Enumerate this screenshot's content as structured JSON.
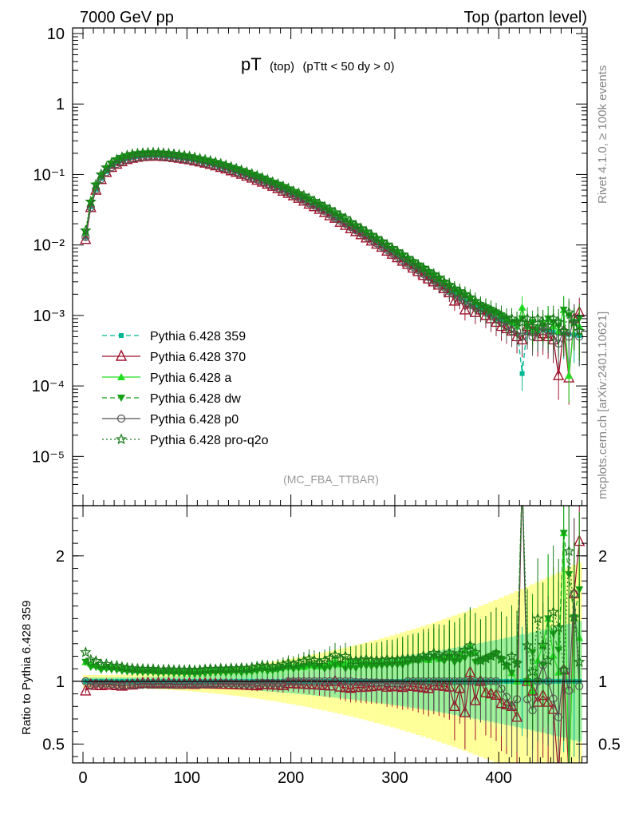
{
  "header": {
    "left": "7000 GeV pp",
    "right": "Top (parton level)"
  },
  "side_labels": {
    "rivet": "Rivet 4.1.0, ≥ 100k events",
    "mcplots": "mcplots.cern.ch [arXiv:2401.10621]"
  },
  "plot": {
    "title_main": "pT",
    "title_sub1": "(top)",
    "title_sub2": "(pTtt < 50 dy > 0)",
    "analysis_tag": "(MC_FBA_TTBAR)",
    "ratio_ylabel": "Ratio to Pythia 6.428 359"
  },
  "chart_data": {
    "type": "line",
    "x": [
      2.5,
      7.5,
      12.5,
      17.5,
      22.5,
      27.5,
      32.5,
      37.5,
      42.5,
      47.5,
      52.5,
      57.5,
      62.5,
      67.5,
      72.5,
      77.5,
      82.5,
      87.5,
      92.5,
      97.5,
      102.5,
      107.5,
      112.5,
      117.5,
      122.5,
      127.5,
      132.5,
      137.5,
      142.5,
      147.5,
      152.5,
      157.5,
      162.5,
      167.5,
      172.5,
      177.5,
      182.5,
      187.5,
      192.5,
      197.5,
      202.5,
      207.5,
      212.5,
      217.5,
      222.5,
      227.5,
      232.5,
      237.5,
      242.5,
      247.5,
      252.5,
      257.5,
      262.5,
      267.5,
      272.5,
      277.5,
      282.5,
      287.5,
      292.5,
      297.5,
      302.5,
      307.5,
      312.5,
      317.5,
      322.5,
      327.5,
      332.5,
      337.5,
      342.5,
      347.5,
      352.5,
      357.5,
      362.5,
      367.5,
      372.5,
      377.5,
      382.5,
      387.5,
      392.5,
      397.5,
      402.5,
      407.5,
      412.5,
      417.5,
      422.5,
      427.5,
      432.5,
      437.5,
      442.5,
      447.5,
      452.5,
      457.5,
      462.5,
      467.5,
      472.5,
      477.5
    ],
    "series": [
      {
        "name": "Pythia 6.428 359",
        "color": "#00b894",
        "marker": "square",
        "dash": "6,4",
        "values": [
          0.013,
          0.035,
          0.062,
          0.088,
          0.11,
          0.13,
          0.145,
          0.158,
          0.168,
          0.175,
          0.18,
          0.183,
          0.185,
          0.186,
          0.186,
          0.184,
          0.181,
          0.178,
          0.174,
          0.17,
          0.165,
          0.16,
          0.154,
          0.148,
          0.142,
          0.136,
          0.129,
          0.123,
          0.116,
          0.11,
          0.104,
          0.098,
          0.092,
          0.086,
          0.08,
          0.075,
          0.07,
          0.065,
          0.06,
          0.055,
          0.051,
          0.047,
          0.043,
          0.039,
          0.036,
          0.033,
          0.03,
          0.027,
          0.024,
          0.022,
          0.02,
          0.018,
          0.0163,
          0.0147,
          0.0132,
          0.0119,
          0.0107,
          0.0096,
          0.0086,
          0.0077,
          0.0069,
          0.0062,
          0.0055,
          0.0049,
          0.0044,
          0.0039,
          0.0035,
          0.0031,
          0.0028,
          0.0025,
          0.0022,
          0.002,
          0.0018,
          0.0016,
          0.0014,
          0.0013,
          0.0012,
          0.0011,
          0.001,
          0.0009,
          0.00085,
          0.0008,
          0.00075,
          0.0007,
          0.00015,
          0.0007,
          0.00065,
          0.0006,
          0.00062,
          0.0006,
          0.00058,
          0.00056,
          0.00055,
          0.00054,
          0.00053,
          0.00052
        ]
      },
      {
        "name": "Pythia 6.428 370",
        "color": "#a0142d",
        "marker": "triangle-open",
        "dash": "",
        "values": [
          0.012,
          0.034,
          0.06,
          0.085,
          0.107,
          0.126,
          0.14,
          0.152,
          0.163,
          0.17,
          0.176,
          0.18,
          0.182,
          0.182,
          0.183,
          0.18,
          0.178,
          0.174,
          0.17,
          0.166,
          0.162,
          0.156,
          0.151,
          0.145,
          0.139,
          0.133,
          0.126,
          0.12,
          0.113,
          0.107,
          0.101,
          0.095,
          0.089,
          0.083,
          0.078,
          0.073,
          0.068,
          0.063,
          0.058,
          0.054,
          0.05,
          0.046,
          0.042,
          0.038,
          0.035,
          0.032,
          0.029,
          0.026,
          0.024,
          0.021,
          0.019,
          0.017,
          0.0155,
          0.014,
          0.0126,
          0.0114,
          0.0103,
          0.0093,
          0.0082,
          0.0074,
          0.0066,
          0.0059,
          0.0053,
          0.0047,
          0.0042,
          0.0037,
          0.0033,
          0.003,
          0.0027,
          0.0024,
          0.0021,
          0.0016,
          0.0017,
          0.0012,
          0.0015,
          0.0011,
          0.0012,
          0.001,
          0.0009,
          0.0008,
          0.0007,
          0.00065,
          0.0006,
          0.0005,
          0.00045,
          0.0007,
          0.0006,
          0.0005,
          0.00055,
          0.0005,
          0.00045,
          0.00014,
          0.0006,
          0.00013,
          0.0009,
          0.0011
        ]
      },
      {
        "name": "Pythia 6.428 a",
        "color": "#22dd22",
        "marker": "triangle",
        "dash": "",
        "values": [
          0.015,
          0.04,
          0.07,
          0.098,
          0.123,
          0.145,
          0.162,
          0.175,
          0.185,
          0.192,
          0.197,
          0.2,
          0.202,
          0.203,
          0.202,
          0.2,
          0.197,
          0.193,
          0.189,
          0.184,
          0.179,
          0.173,
          0.167,
          0.161,
          0.155,
          0.148,
          0.141,
          0.134,
          0.127,
          0.12,
          0.114,
          0.107,
          0.101,
          0.095,
          0.089,
          0.083,
          0.077,
          0.072,
          0.067,
          0.062,
          0.057,
          0.053,
          0.048,
          0.044,
          0.041,
          0.037,
          0.034,
          0.031,
          0.028,
          0.025,
          0.023,
          0.021,
          0.019,
          0.017,
          0.0152,
          0.0137,
          0.0123,
          0.0111,
          0.0099,
          0.0089,
          0.008,
          0.0072,
          0.0064,
          0.0058,
          0.0052,
          0.0046,
          0.0041,
          0.0037,
          0.0033,
          0.003,
          0.0027,
          0.0024,
          0.0022,
          0.002,
          0.0018,
          0.0016,
          0.0014,
          0.0013,
          0.0012,
          0.0011,
          0.001,
          0.0009,
          0.0008,
          0.0007,
          0.0013,
          0.0007,
          0.0006,
          0.0007,
          0.0008,
          0.0009,
          0.0007,
          0.0006,
          0.0012,
          0.00014,
          0.0008,
          0.0007
        ]
      },
      {
        "name": "Pythia 6.428 dw",
        "color": "#14a014",
        "marker": "triangle-down",
        "dash": "6,4",
        "values": [
          0.015,
          0.039,
          0.069,
          0.096,
          0.121,
          0.142,
          0.158,
          0.171,
          0.181,
          0.188,
          0.193,
          0.196,
          0.198,
          0.199,
          0.198,
          0.196,
          0.193,
          0.189,
          0.185,
          0.18,
          0.175,
          0.169,
          0.163,
          0.157,
          0.151,
          0.145,
          0.138,
          0.131,
          0.124,
          0.118,
          0.111,
          0.105,
          0.099,
          0.093,
          0.087,
          0.081,
          0.076,
          0.071,
          0.066,
          0.061,
          0.056,
          0.052,
          0.048,
          0.044,
          0.04,
          0.037,
          0.033,
          0.03,
          0.027,
          0.025,
          0.022,
          0.02,
          0.018,
          0.0165,
          0.0148,
          0.0133,
          0.012,
          0.0108,
          0.0097,
          0.0087,
          0.0078,
          0.007,
          0.0063,
          0.0057,
          0.0051,
          0.0046,
          0.0041,
          0.0037,
          0.0033,
          0.0029,
          0.0026,
          0.0023,
          0.0021,
          0.0019,
          0.0017,
          0.0015,
          0.0014,
          0.0013,
          0.0012,
          0.0011,
          0.001,
          0.0009,
          0.0008,
          0.0008,
          0.0009,
          0.0007,
          0.0008,
          0.0006,
          0.0007,
          0.0009,
          0.0008,
          0.0007,
          0.0012,
          0.001,
          0.0008,
          0.0009
        ]
      },
      {
        "name": "Pythia 6.428 p0",
        "color": "#555555",
        "marker": "circle-open",
        "dash": "",
        "values": [
          0.013,
          0.034,
          0.061,
          0.086,
          0.108,
          0.127,
          0.141,
          0.153,
          0.163,
          0.17,
          0.175,
          0.178,
          0.18,
          0.181,
          0.181,
          0.179,
          0.176,
          0.173,
          0.169,
          0.165,
          0.161,
          0.156,
          0.15,
          0.145,
          0.139,
          0.133,
          0.127,
          0.121,
          0.114,
          0.108,
          0.102,
          0.096,
          0.09,
          0.085,
          0.079,
          0.074,
          0.069,
          0.064,
          0.059,
          0.055,
          0.051,
          0.047,
          0.043,
          0.039,
          0.036,
          0.033,
          0.03,
          0.027,
          0.024,
          0.022,
          0.02,
          0.018,
          0.0162,
          0.0146,
          0.0131,
          0.0118,
          0.0106,
          0.0095,
          0.0085,
          0.0076,
          0.0068,
          0.0061,
          0.0055,
          0.0049,
          0.0044,
          0.0039,
          0.0035,
          0.0031,
          0.0028,
          0.0025,
          0.0022,
          0.002,
          0.0018,
          0.0016,
          0.0014,
          0.0013,
          0.0012,
          0.0011,
          0.001,
          0.0009,
          0.0008,
          0.0007,
          0.0006,
          0.0006,
          0.0005,
          0.0006,
          0.0005,
          0.0006,
          0.0007,
          0.0006,
          0.0005,
          0.0004,
          0.0006,
          0.0005,
          0.0009,
          0.0005
        ]
      },
      {
        "name": "Pythia 6.428 pro-q2o",
        "color": "#1a7a1a",
        "marker": "star-open",
        "dash": "2,3",
        "values": [
          0.016,
          0.041,
          0.072,
          0.1,
          0.125,
          0.146,
          0.163,
          0.176,
          0.186,
          0.193,
          0.198,
          0.201,
          0.203,
          0.204,
          0.203,
          0.201,
          0.198,
          0.194,
          0.19,
          0.185,
          0.18,
          0.174,
          0.168,
          0.162,
          0.156,
          0.149,
          0.142,
          0.135,
          0.128,
          0.121,
          0.115,
          0.108,
          0.102,
          0.096,
          0.09,
          0.084,
          0.078,
          0.073,
          0.068,
          0.063,
          0.058,
          0.054,
          0.05,
          0.046,
          0.042,
          0.038,
          0.035,
          0.032,
          0.029,
          0.026,
          0.024,
          0.021,
          0.019,
          0.0172,
          0.0155,
          0.0139,
          0.0125,
          0.0112,
          0.0101,
          0.009,
          0.0081,
          0.0073,
          0.0065,
          0.0058,
          0.0052,
          0.0047,
          0.0042,
          0.0038,
          0.0034,
          0.003,
          0.0027,
          0.0024,
          0.0022,
          0.002,
          0.0018,
          0.0016,
          0.0014,
          0.0013,
          0.0012,
          0.0011,
          0.001,
          0.0009,
          0.0009,
          0.0008,
          0.0008,
          0.0009,
          0.0007,
          0.0009,
          0.0008,
          0.0007,
          0.0009,
          0.0008,
          0.0006,
          0.0011,
          0.0008,
          0.0006
        ]
      }
    ],
    "ratio": {
      "ylabel": "Ratio to Pythia 6.428 359",
      "ylim": [
        0.35,
        2.4
      ],
      "reference": "Pythia 6.428 359"
    },
    "xlim": [
      -10,
      485
    ],
    "ylim": [
      2e-06,
      12
    ],
    "yscale": "log",
    "main_y_ticks": [
      {
        "v": 10,
        "label": "10"
      },
      {
        "v": 1,
        "label": "1"
      },
      {
        "v": 0.1,
        "label": "10⁻¹"
      },
      {
        "v": 0.01,
        "label": "10⁻²"
      },
      {
        "v": 0.001,
        "label": "10⁻³"
      },
      {
        "v": 0.0001,
        "label": "10⁻⁴"
      },
      {
        "v": 1e-05,
        "label": "10⁻⁵"
      }
    ],
    "x_ticks": [
      {
        "v": 0,
        "label": "0"
      },
      {
        "v": 100,
        "label": "100"
      },
      {
        "v": 200,
        "label": "200"
      },
      {
        "v": 300,
        "label": "300"
      },
      {
        "v": 400,
        "label": "400"
      }
    ],
    "ratio_ticks": [
      {
        "v": 2,
        "label": "2"
      },
      {
        "v": 1,
        "label": "1"
      },
      {
        "v": 0.5,
        "label": "0.5"
      }
    ],
    "legend_position": "lower-left"
  }
}
